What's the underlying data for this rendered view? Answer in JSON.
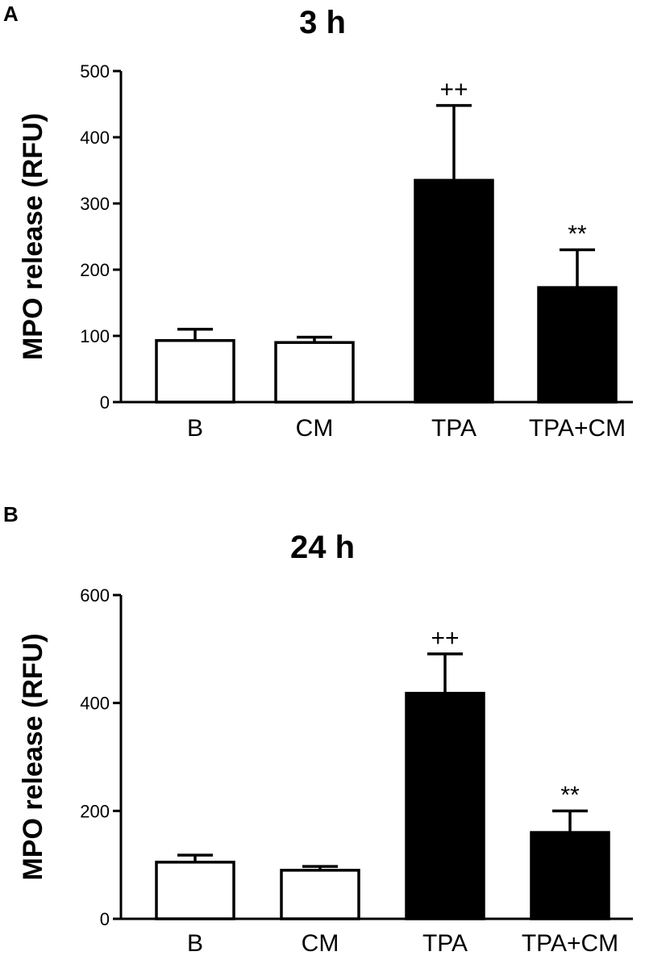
{
  "chart_data": [
    {
      "panel_label": "A",
      "type": "bar",
      "title": "3 h",
      "ylabel": "MPO release  (RFU)",
      "xlabel": "",
      "ylim": [
        0,
        500
      ],
      "yticks": [
        0,
        100,
        200,
        300,
        400,
        500
      ],
      "categories": [
        "B",
        "CM",
        "TPA",
        "TPA+CM"
      ],
      "values": [
        93,
        90,
        335,
        173
      ],
      "errors": [
        17,
        8,
        113,
        57
      ],
      "fills": [
        "#ffffff",
        "#ffffff",
        "#000000",
        "#000000"
      ],
      "annotations": [
        "",
        "",
        "++",
        "**"
      ],
      "grid": false,
      "legend": false
    },
    {
      "panel_label": "B",
      "type": "bar",
      "title": "24 h",
      "ylabel": "MPO release  (RFU)",
      "xlabel": "",
      "ylim": [
        0,
        600
      ],
      "yticks": [
        0,
        200,
        400,
        600
      ],
      "categories": [
        "B",
        "CM",
        "TPA",
        "TPA+CM"
      ],
      "values": [
        105,
        90,
        418,
        160
      ],
      "errors": [
        13,
        7,
        73,
        40
      ],
      "fills": [
        "#ffffff",
        "#ffffff",
        "#000000",
        "#000000"
      ],
      "annotations": [
        "",
        "",
        "++",
        "**"
      ],
      "grid": false,
      "legend": false
    }
  ]
}
